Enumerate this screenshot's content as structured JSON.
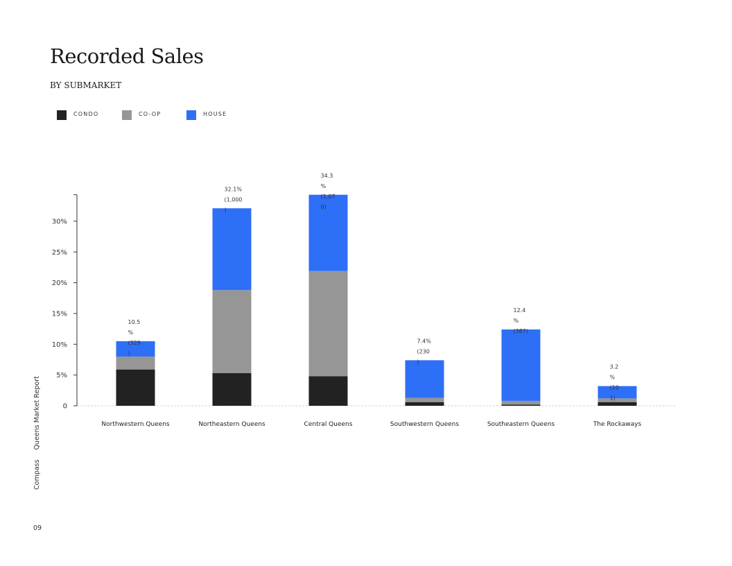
{
  "header": {
    "title": "Recorded Sales",
    "subtitle": "BY SUBMARKET"
  },
  "legend": [
    {
      "label": "CONDO",
      "color": "#222222"
    },
    {
      "label": "CO-OP",
      "color": "#969696"
    },
    {
      "label": "HOUSE",
      "color": "#2e6ff8"
    }
  ],
  "footer": {
    "brand": "Compass",
    "report": "Queens Market Report",
    "page_number": "09"
  },
  "chart_data": {
    "type": "bar",
    "stacked": true,
    "categories": [
      "Northwestern Queens",
      "Northeastern Queens",
      "Central Queens",
      "Southwestern Queens",
      "Southeastern Queens",
      "The Rockaways"
    ],
    "series": [
      {
        "name": "CONDO",
        "color": "#222222",
        "values": [
          5.9,
          5.3,
          4.8,
          0.6,
          0.2,
          0.6
        ]
      },
      {
        "name": "CO-OP",
        "color": "#969696",
        "values": [
          2.1,
          13.5,
          17.1,
          0.7,
          0.6,
          0.6
        ]
      },
      {
        "name": "HOUSE",
        "color": "#2e6ff8",
        "values": [
          2.5,
          13.3,
          12.4,
          6.1,
          11.6,
          2.0
        ]
      }
    ],
    "totals": [
      10.5,
      32.1,
      34.3,
      7.4,
      12.4,
      3.2
    ],
    "data_labels": [
      [
        "10.5",
        "%",
        "(329",
        ")"
      ],
      [
        "32.1%",
        "(1,000",
        ")"
      ],
      [
        "34.3",
        "%",
        "(1,07",
        "0)"
      ],
      [
        "7.4%",
        "(230",
        ")"
      ],
      [
        "12.4",
        "%",
        "(387)"
      ],
      [
        "3.2",
        "%",
        "(10",
        "1)"
      ]
    ],
    "y_ticks": [
      {
        "value": 0,
        "label": "0"
      },
      {
        "value": 5,
        "label": "5%"
      },
      {
        "value": 10,
        "label": "10%"
      },
      {
        "value": 15,
        "label": "15%"
      },
      {
        "value": 20,
        "label": "20%"
      },
      {
        "value": 25,
        "label": "25%"
      },
      {
        "value": 30,
        "label": "30%"
      }
    ],
    "ylim": [
      0,
      34.3
    ],
    "xlabel": "",
    "ylabel": "",
    "grid": false,
    "legend_position": "top-left"
  }
}
